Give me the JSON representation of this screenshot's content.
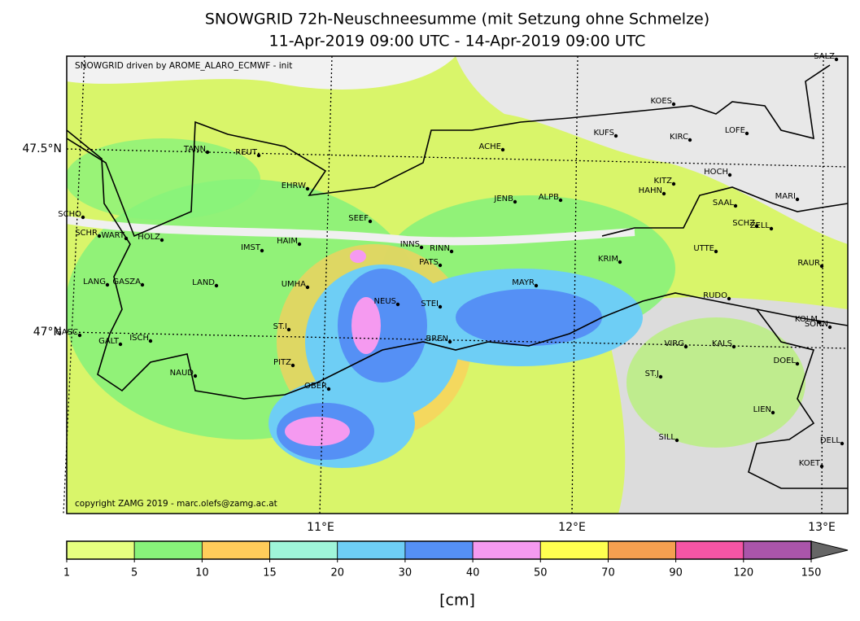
{
  "header": {
    "title": "SNOWGRID 72h-Neuschneesumme (mit Setzung ohne Schmelze)",
    "subtitle": "11-Apr-2019 09:00 UTC - 14-Apr-2019 09:00 UTC"
  },
  "map": {
    "credit_top": "SNOWGRID driven by AROME_ALARO_ECMWF - init",
    "credit_bottom": "copyright ZAMG 2019 - marc.olefs@zamg.ac.at",
    "lat_labels": [
      "47.5°N",
      "47°N"
    ],
    "lon_labels": [
      "11°E",
      "12°E",
      "13°E"
    ],
    "stations": [
      "SALZ",
      "KOES",
      "KUFS",
      "KIRC",
      "LOFE",
      "TANN",
      "REUT",
      "ACHE",
      "HOCH",
      "EHRW",
      "KITZ",
      "HAHN",
      "JENB",
      "ALPB",
      "MARI",
      "SAAL",
      "SCHO",
      "SEEF",
      "SCHZ",
      "ZELL",
      "SCHR",
      "WART",
      "HOLZ",
      "HAIM",
      "INNS",
      "RINN",
      "IMST",
      "UTTE",
      "KRIM",
      "PATS",
      "RAUR",
      "LANG",
      "GASZA",
      "LAND",
      "UMHA",
      "MAYR",
      "NEUS",
      "STEI",
      "RUDO",
      "KOLM",
      "SONN",
      "ST.I",
      "GASC",
      "GALT",
      "ISCH",
      "BREN",
      "VIRG",
      "KALS",
      "DOEL",
      "PITZ",
      "NAUD",
      "ST.J",
      "OBER",
      "LIEN",
      "SILL",
      "DELL",
      "KOET"
    ]
  },
  "colorbar": {
    "ticks": [
      1,
      5,
      10,
      15,
      20,
      30,
      40,
      50,
      70,
      90,
      120,
      150
    ],
    "colors": [
      "#e6ff80",
      "#88f27a",
      "#ffcc5a",
      "#9ff5d9",
      "#6ecef5",
      "#5590f5",
      "#f59af0",
      "#ffff50",
      "#f5a050",
      "#f555a5",
      "#aa55aa"
    ],
    "extend_color": "#666666",
    "unit": "[cm]"
  }
}
